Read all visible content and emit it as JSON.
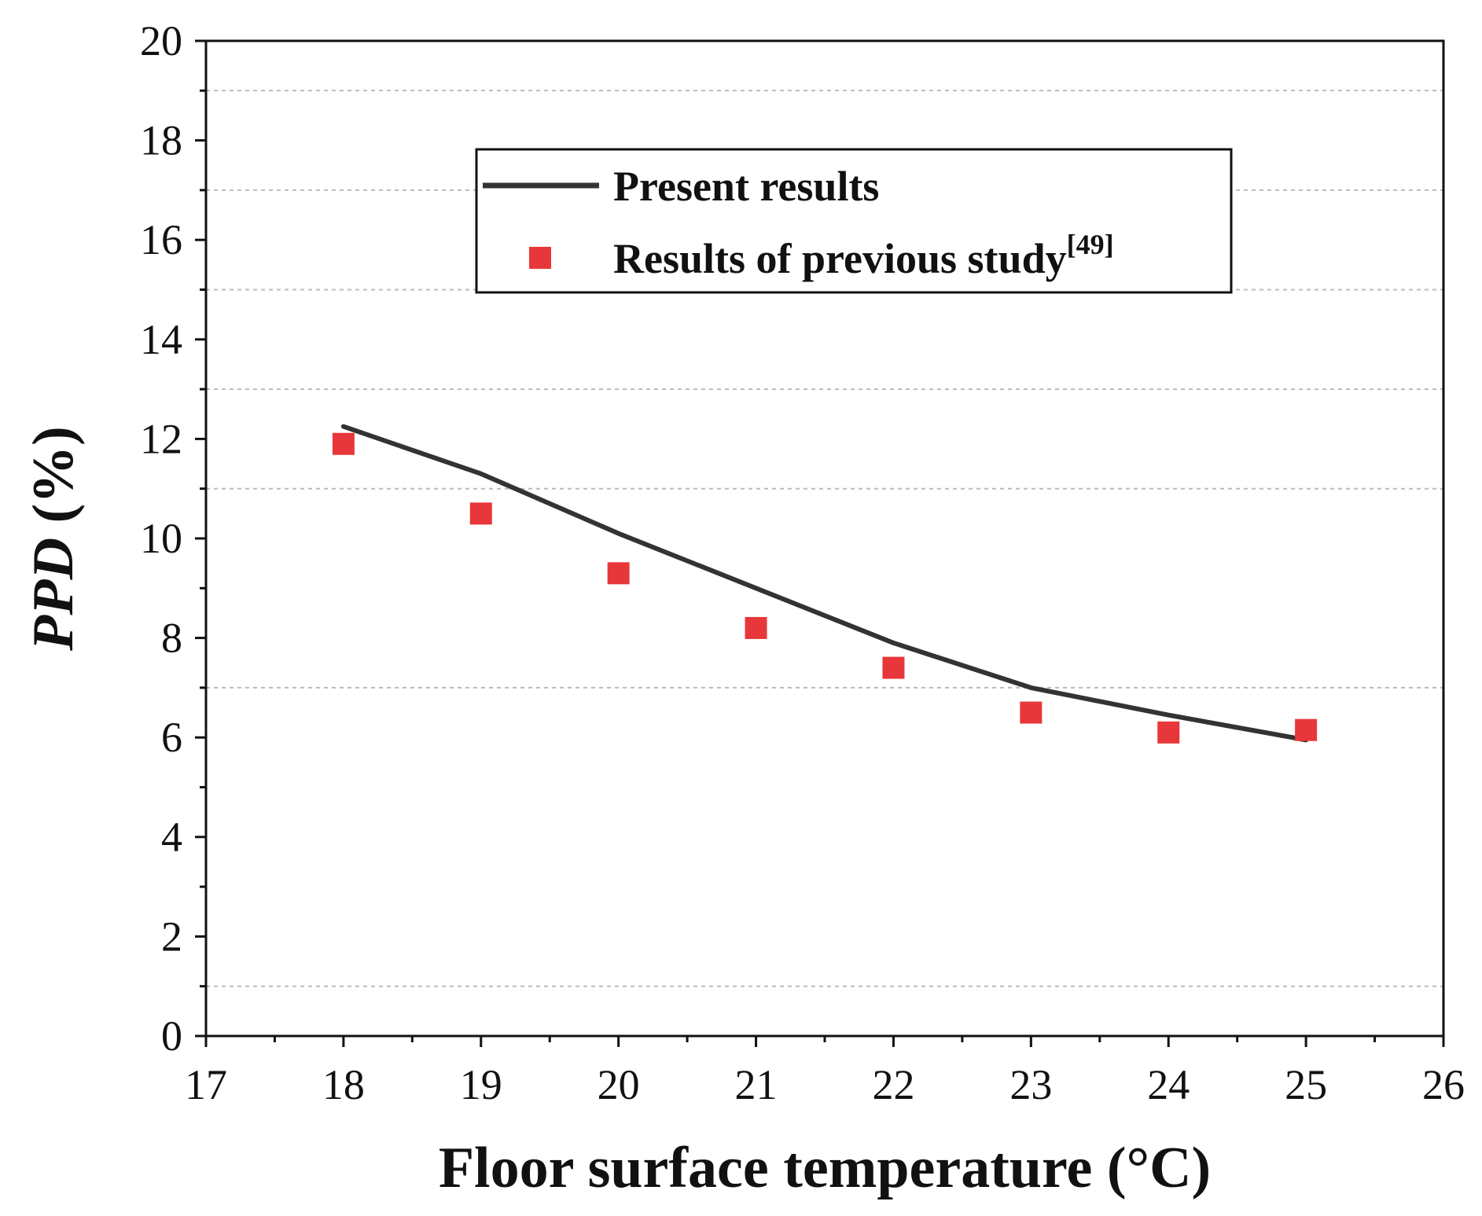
{
  "chart_data": {
    "type": "line",
    "xlabel": "Floor surface temperature (°C)",
    "ylabel_italic": "PPD",
    "ylabel_unit": " (%)",
    "xlim": [
      17,
      26
    ],
    "ylim": [
      0,
      20
    ],
    "x_ticks": [
      17,
      18,
      19,
      20,
      21,
      22,
      23,
      24,
      25,
      26
    ],
    "y_ticks": [
      0,
      2,
      4,
      6,
      8,
      10,
      12,
      14,
      16,
      18,
      20
    ],
    "grid_lines_y": [
      1,
      7,
      11,
      13,
      15,
      17,
      19
    ],
    "grid": "dashed horizontal gridlines",
    "legend_position": "top-center",
    "series": [
      {
        "name": "Present results",
        "style": "line",
        "color": "#333333",
        "x": [
          18,
          19,
          20,
          21,
          22,
          23,
          24,
          25
        ],
        "y": [
          12.25,
          11.3,
          10.1,
          9.0,
          7.9,
          7.0,
          6.45,
          5.95
        ]
      },
      {
        "name": "Results of previous study",
        "name_superscript": "[49]",
        "style": "marker-square",
        "color": "#e8373a",
        "x": [
          18,
          19,
          20,
          21,
          22,
          23,
          24,
          25
        ],
        "y": [
          11.9,
          10.5,
          9.3,
          8.2,
          7.4,
          6.5,
          6.1,
          6.15
        ]
      }
    ]
  }
}
